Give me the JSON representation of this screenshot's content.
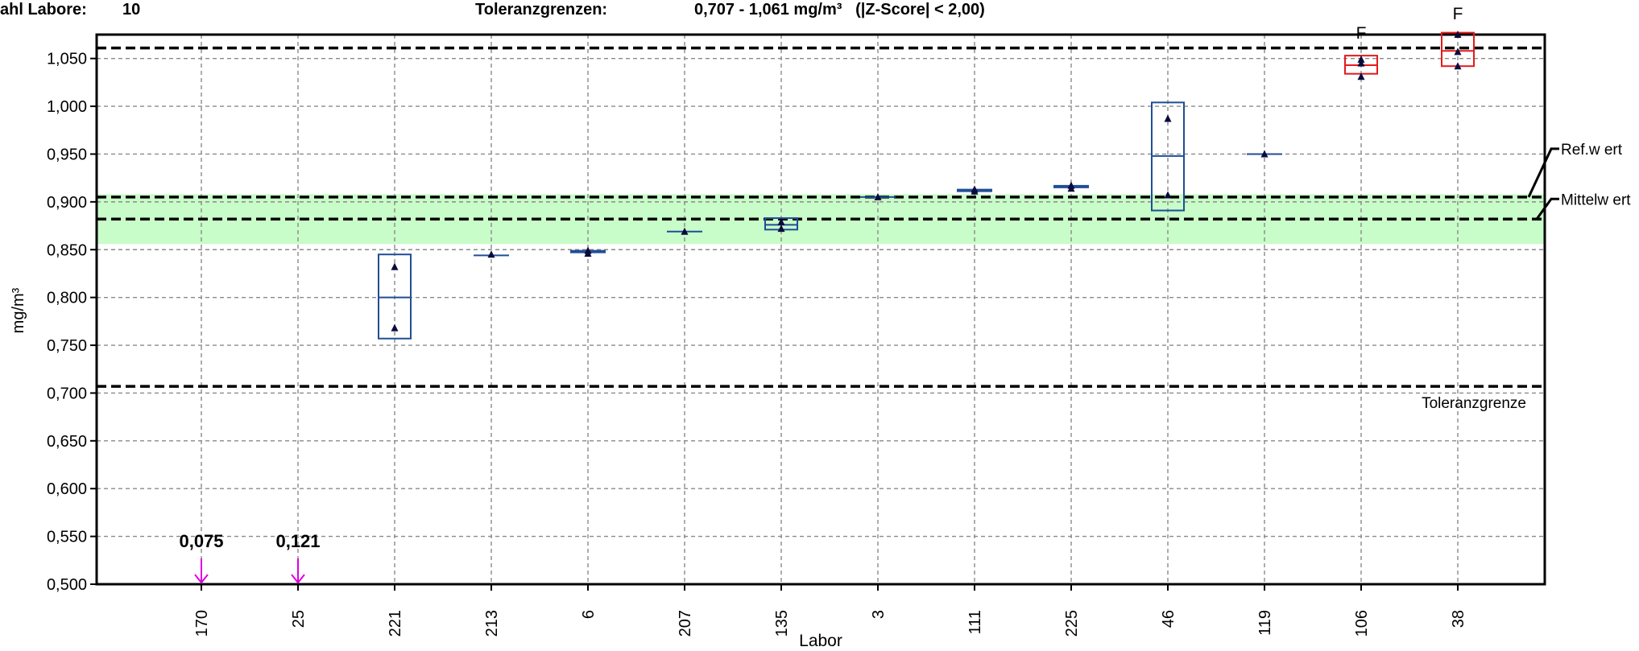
{
  "header": {
    "labs_label": "ahl Labore:",
    "labs_value": "10",
    "tol_label": "Toleranzgrenzen:",
    "tol_value": "0,707 - 1,061 mg/m³   (|Z-Score| < 2,00)"
  },
  "colors": {
    "band": "#c8fcc8",
    "box_normal": "#1f4e96",
    "box_flagged": "#e41a1c",
    "marker": "#0a0a3c",
    "offscale": "#e000e0"
  },
  "chart_data": {
    "type": "box",
    "xlabel": "Labor",
    "ylabel": "mg/m³",
    "ylim": [
      0.5,
      1.075
    ],
    "y_ticks": [
      "0,500",
      "0,550",
      "0,600",
      "0,650",
      "0,700",
      "0,750",
      "0,800",
      "0,850",
      "0,900",
      "0,950",
      "1,000",
      "1,050"
    ],
    "grid": true,
    "reference_lines": [
      {
        "name": "Ref.w ert",
        "value": 0.905
      },
      {
        "name": "Mittelw ert",
        "value": 0.882
      },
      {
        "name": "",
        "value": 1.061
      },
      {
        "name": "Toleranzgrenze",
        "value": 0.707
      }
    ],
    "band": [
      0.856,
      0.908
    ],
    "labs": [
      {
        "label": "170",
        "offscale_value": "0,075"
      },
      {
        "label": "25",
        "offscale_value": "0,121"
      },
      {
        "label": "221",
        "low": 0.757,
        "mid": 0.8,
        "high": 0.845,
        "points": [
          0.832,
          0.768
        ]
      },
      {
        "label": "213",
        "low": 0.844,
        "mid": 0.844,
        "high": 0.844,
        "points": [
          0.845
        ]
      },
      {
        "label": "6",
        "low": 0.847,
        "mid": 0.848,
        "high": 0.849,
        "points": [
          0.849,
          0.846
        ]
      },
      {
        "label": "207",
        "low": 0.869,
        "mid": 0.869,
        "high": 0.869,
        "points": [
          0.869
        ]
      },
      {
        "label": "135",
        "low": 0.871,
        "mid": 0.876,
        "high": 0.883,
        "points": [
          0.879,
          0.872
        ]
      },
      {
        "label": "3",
        "low": 0.905,
        "mid": 0.905,
        "high": 0.905,
        "points": [
          0.905
        ]
      },
      {
        "label": "111",
        "low": 0.91,
        "mid": 0.912,
        "high": 0.914,
        "points": [
          0.913,
          0.911
        ]
      },
      {
        "label": "225",
        "low": 0.914,
        "mid": 0.916,
        "high": 0.918,
        "points": [
          0.917,
          0.914
        ]
      },
      {
        "label": "46",
        "low": 0.891,
        "mid": 0.948,
        "high": 1.004,
        "points": [
          0.987,
          0.907
        ]
      },
      {
        "label": "119",
        "low": 0.95,
        "mid": 0.95,
        "high": 0.95,
        "points": [
          0.95
        ]
      },
      {
        "label": "106",
        "low": 1.034,
        "mid": 1.043,
        "high": 1.053,
        "points": [
          1.049,
          1.045,
          1.031
        ],
        "flag": "F"
      },
      {
        "label": "38",
        "low": 1.042,
        "mid": 1.058,
        "high": 1.077,
        "points": [
          1.075,
          1.057,
          1.042
        ],
        "flag": "F"
      }
    ]
  }
}
